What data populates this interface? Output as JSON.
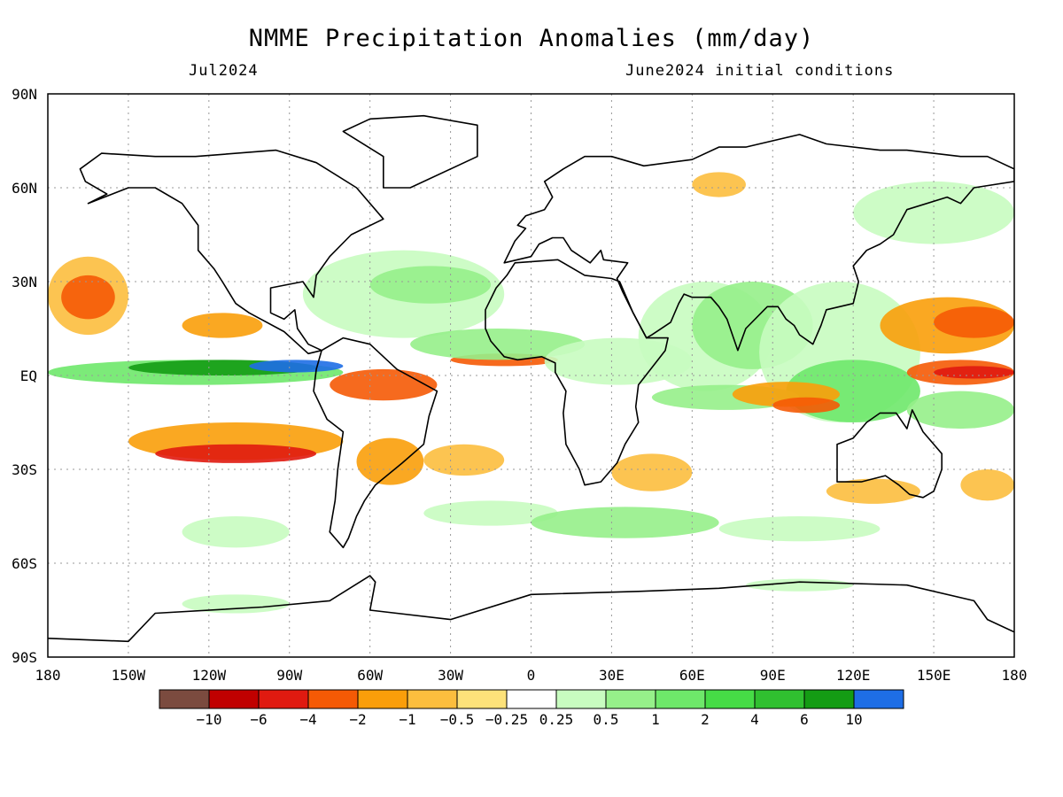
{
  "header": {
    "title": "NMME Precipitation Anomalies (mm/day)",
    "valid_period": "Jul2024",
    "initial_conditions": "June2024 initial conditions"
  },
  "axes": {
    "lat_ticks": [
      {
        "value": 90,
        "label": "90N"
      },
      {
        "value": 60,
        "label": "60N"
      },
      {
        "value": 30,
        "label": "30N"
      },
      {
        "value": 0,
        "label": "EQ"
      },
      {
        "value": -30,
        "label": "30S"
      },
      {
        "value": -60,
        "label": "60S"
      },
      {
        "value": -90,
        "label": "90S"
      }
    ],
    "lon_ticks": [
      {
        "value": -180,
        "label": "180"
      },
      {
        "value": -150,
        "label": "150W"
      },
      {
        "value": -120,
        "label": "120W"
      },
      {
        "value": -90,
        "label": "90W"
      },
      {
        "value": -60,
        "label": "60W"
      },
      {
        "value": -30,
        "label": "30W"
      },
      {
        "value": 0,
        "label": "0"
      },
      {
        "value": 30,
        "label": "30E"
      },
      {
        "value": 60,
        "label": "60E"
      },
      {
        "value": 90,
        "label": "90E"
      },
      {
        "value": 120,
        "label": "120E"
      },
      {
        "value": 150,
        "label": "150E"
      },
      {
        "value": 180,
        "label": "180"
      }
    ],
    "lat_range": [
      -90,
      90
    ],
    "lon_range": [
      -180,
      180
    ],
    "grid": "dotted"
  },
  "colorbar": {
    "colors": [
      "#7b4b3f",
      "#c00000",
      "#e01a10",
      "#f55a05",
      "#fa9e0a",
      "#fcbe3e",
      "#fde27a",
      "#ffffff",
      "#c8fcc0",
      "#96f08a",
      "#6ee86a",
      "#46dc46",
      "#30c030",
      "#149c14",
      "#1e6ee6"
    ],
    "labels": [
      "−10",
      "−6",
      "−4",
      "−2",
      "−1",
      "−0.5",
      "−0.25",
      "0.25",
      "0.5",
      "1",
      "2",
      "4",
      "6",
      "10"
    ]
  },
  "map_regions": [
    {
      "lon": -180,
      "lat": 5,
      "w": 110,
      "h": 8,
      "level": 10
    },
    {
      "lon": -150,
      "lat": 5,
      "w": 70,
      "h": 5,
      "level": 13
    },
    {
      "lon": -105,
      "lat": 5,
      "w": 35,
      "h": 4,
      "level": 14
    },
    {
      "lon": -180,
      "lat": 14,
      "w": 110,
      "h": 6,
      "level": 7
    },
    {
      "lon": -180,
      "lat": -7,
      "w": 60,
      "h": 10,
      "level": 7
    },
    {
      "lon": -180,
      "lat": 38,
      "w": 30,
      "h": 25,
      "level": 5
    },
    {
      "lon": -175,
      "lat": 32,
      "w": 20,
      "h": 14,
      "level": 3
    },
    {
      "lon": -130,
      "lat": 20,
      "w": 30,
      "h": 8,
      "level": 4
    },
    {
      "lon": -150,
      "lat": -15,
      "w": 80,
      "h": 12,
      "level": 4
    },
    {
      "lon": -140,
      "lat": -22,
      "w": 60,
      "h": 6,
      "level": 2
    },
    {
      "lon": -75,
      "lat": 2,
      "w": 40,
      "h": 10,
      "level": 3
    },
    {
      "lon": -65,
      "lat": -20,
      "w": 25,
      "h": 15,
      "level": 4
    },
    {
      "lon": -40,
      "lat": -22,
      "w": 30,
      "h": 10,
      "level": 5
    },
    {
      "lon": -30,
      "lat": 7,
      "w": 40,
      "h": 4,
      "level": 3
    },
    {
      "lon": -85,
      "lat": 40,
      "w": 75,
      "h": 28,
      "level": 8
    },
    {
      "lon": -60,
      "lat": 35,
      "w": 45,
      "h": 12,
      "level": 9
    },
    {
      "lon": -45,
      "lat": 15,
      "w": 65,
      "h": 10,
      "level": 9
    },
    {
      "lon": 5,
      "lat": 12,
      "w": 55,
      "h": 15,
      "level": 8
    },
    {
      "lon": 40,
      "lat": 30,
      "w": 50,
      "h": 35,
      "level": 8
    },
    {
      "lon": 60,
      "lat": 30,
      "w": 45,
      "h": 28,
      "level": 9
    },
    {
      "lon": 85,
      "lat": 30,
      "w": 60,
      "h": 45,
      "level": 8
    },
    {
      "lon": 95,
      "lat": 5,
      "w": 50,
      "h": 20,
      "level": 10
    },
    {
      "lon": 45,
      "lat": -3,
      "w": 55,
      "h": 8,
      "level": 9
    },
    {
      "lon": 75,
      "lat": -2,
      "w": 40,
      "h": 8,
      "level": 4
    },
    {
      "lon": 90,
      "lat": -7,
      "w": 25,
      "h": 5,
      "level": 3
    },
    {
      "lon": 130,
      "lat": 25,
      "w": 50,
      "h": 18,
      "level": 4
    },
    {
      "lon": 150,
      "lat": 22,
      "w": 30,
      "h": 10,
      "level": 3
    },
    {
      "lon": 140,
      "lat": 5,
      "w": 40,
      "h": 8,
      "level": 3
    },
    {
      "lon": 150,
      "lat": 3,
      "w": 30,
      "h": 4,
      "level": 2
    },
    {
      "lon": 140,
      "lat": -5,
      "w": 40,
      "h": 12,
      "level": 9
    },
    {
      "lon": 30,
      "lat": -25,
      "w": 30,
      "h": 12,
      "level": 5
    },
    {
      "lon": 110,
      "lat": -33,
      "w": 35,
      "h": 8,
      "level": 5
    },
    {
      "lon": 160,
      "lat": -30,
      "w": 20,
      "h": 10,
      "level": 5
    },
    {
      "lon": -40,
      "lat": -40,
      "w": 50,
      "h": 8,
      "level": 8
    },
    {
      "lon": 0,
      "lat": -42,
      "w": 70,
      "h": 10,
      "level": 9
    },
    {
      "lon": 70,
      "lat": -45,
      "w": 60,
      "h": 8,
      "level": 8
    },
    {
      "lon": -130,
      "lat": -45,
      "w": 40,
      "h": 10,
      "level": 8
    },
    {
      "lon": -130,
      "lat": -70,
      "w": 40,
      "h": 6,
      "level": 8
    },
    {
      "lon": 80,
      "lat": -65,
      "w": 40,
      "h": 4,
      "level": 8
    },
    {
      "lon": 60,
      "lat": 65,
      "w": 20,
      "h": 8,
      "level": 5
    },
    {
      "lon": 120,
      "lat": 62,
      "w": 60,
      "h": 20,
      "level": 8
    }
  ],
  "land_outlines": [
    [
      [
        -168,
        66
      ],
      [
        -160,
        71
      ],
      [
        -140,
        70
      ],
      [
        -125,
        70
      ],
      [
        -95,
        72
      ],
      [
        -80,
        68
      ],
      [
        -65,
        60
      ],
      [
        -55,
        50
      ],
      [
        -67,
        45
      ],
      [
        -75,
        38
      ],
      [
        -80,
        32
      ],
      [
        -81,
        25
      ],
      [
        -85,
        30
      ],
      [
        -97,
        28
      ],
      [
        -97,
        20
      ],
      [
        -92,
        18
      ],
      [
        -88,
        21
      ],
      [
        -87,
        15
      ],
      [
        -83,
        10
      ],
      [
        -78,
        8
      ],
      [
        -83,
        7
      ],
      [
        -92,
        14
      ],
      [
        -105,
        20
      ],
      [
        -110,
        23
      ],
      [
        -115,
        30
      ],
      [
        -118,
        34
      ],
      [
        -124,
        40
      ],
      [
        -124,
        48
      ],
      [
        -130,
        55
      ],
      [
        -140,
        60
      ],
      [
        -150,
        60
      ],
      [
        -165,
        55
      ],
      [
        -158,
        58
      ],
      [
        -166,
        62
      ],
      [
        -168,
        66
      ]
    ],
    [
      [
        -78,
        8
      ],
      [
        -70,
        12
      ],
      [
        -60,
        10
      ],
      [
        -50,
        2
      ],
      [
        -35,
        -5
      ],
      [
        -38,
        -13
      ],
      [
        -40,
        -22
      ],
      [
        -48,
        -28
      ],
      [
        -58,
        -35
      ],
      [
        -62,
        -40
      ],
      [
        -65,
        -45
      ],
      [
        -68,
        -52
      ],
      [
        -70,
        -55
      ],
      [
        -75,
        -50
      ],
      [
        -73,
        -40
      ],
      [
        -72,
        -30
      ],
      [
        -70,
        -18
      ],
      [
        -76,
        -14
      ],
      [
        -81,
        -5
      ],
      [
        -80,
        2
      ],
      [
        -78,
        8
      ]
    ],
    [
      [
        -55,
        60
      ],
      [
        -45,
        60
      ],
      [
        -20,
        70
      ],
      [
        -20,
        80
      ],
      [
        -40,
        83
      ],
      [
        -60,
        82
      ],
      [
        -70,
        78
      ],
      [
        -55,
        70
      ],
      [
        -55,
        60
      ]
    ],
    [
      [
        -10,
        36
      ],
      [
        -6,
        43
      ],
      [
        -2,
        47
      ],
      [
        -5,
        48
      ],
      [
        -2,
        51
      ],
      [
        5,
        53
      ],
      [
        8,
        57
      ],
      [
        5,
        62
      ],
      [
        12,
        66
      ],
      [
        20,
        70
      ],
      [
        30,
        70
      ],
      [
        42,
        67
      ],
      [
        60,
        69
      ],
      [
        70,
        73
      ],
      [
        80,
        73
      ],
      [
        100,
        77
      ],
      [
        110,
        74
      ],
      [
        130,
        72
      ],
      [
        140,
        72
      ],
      [
        160,
        70
      ],
      [
        170,
        70
      ],
      [
        180,
        66
      ],
      [
        180,
        62
      ],
      [
        165,
        60
      ],
      [
        160,
        55
      ],
      [
        155,
        57
      ],
      [
        140,
        53
      ],
      [
        135,
        45
      ],
      [
        130,
        42
      ],
      [
        125,
        40
      ],
      [
        120,
        35
      ],
      [
        122,
        30
      ],
      [
        120,
        23
      ],
      [
        110,
        21
      ],
      [
        108,
        16
      ],
      [
        105,
        10
      ],
      [
        100,
        13
      ],
      [
        98,
        16
      ],
      [
        95,
        18
      ],
      [
        92,
        22
      ],
      [
        88,
        22
      ],
      [
        80,
        15
      ],
      [
        77,
        8
      ],
      [
        73,
        18
      ],
      [
        70,
        22
      ],
      [
        67,
        25
      ],
      [
        60,
        25
      ],
      [
        57,
        26
      ],
      [
        55,
        23
      ],
      [
        52,
        17
      ],
      [
        45,
        13
      ],
      [
        43,
        12
      ],
      [
        38,
        20
      ],
      [
        34,
        27
      ],
      [
        32,
        31
      ],
      [
        36,
        36
      ],
      [
        27,
        37
      ],
      [
        26,
        40
      ],
      [
        22,
        36
      ],
      [
        15,
        40
      ],
      [
        12,
        44
      ],
      [
        8,
        44
      ],
      [
        3,
        42
      ],
      [
        0,
        38
      ],
      [
        -10,
        36
      ]
    ],
    [
      [
        -17,
        15
      ],
      [
        -17,
        21
      ],
      [
        -13,
        28
      ],
      [
        -9,
        32
      ],
      [
        -6,
        36
      ],
      [
        10,
        37
      ],
      [
        20,
        32
      ],
      [
        30,
        31
      ],
      [
        33,
        30
      ],
      [
        38,
        20
      ],
      [
        43,
        12
      ],
      [
        51,
        12
      ],
      [
        50,
        8
      ],
      [
        40,
        -3
      ],
      [
        39,
        -10
      ],
      [
        40,
        -15
      ],
      [
        35,
        -22
      ],
      [
        32,
        -28
      ],
      [
        26,
        -34
      ],
      [
        20,
        -35
      ],
      [
        18,
        -30
      ],
      [
        13,
        -22
      ],
      [
        12,
        -12
      ],
      [
        13,
        -5
      ],
      [
        9,
        1
      ],
      [
        9,
        4
      ],
      [
        4,
        6
      ],
      [
        -5,
        5
      ],
      [
        -10,
        6
      ],
      [
        -15,
        11
      ],
      [
        -17,
        15
      ]
    ],
    [
      [
        114,
        -22
      ],
      [
        114,
        -34
      ],
      [
        123,
        -34
      ],
      [
        132,
        -32
      ],
      [
        137,
        -35
      ],
      [
        141,
        -38
      ],
      [
        146,
        -39
      ],
      [
        150,
        -37
      ],
      [
        153,
        -30
      ],
      [
        153,
        -25
      ],
      [
        146,
        -18
      ],
      [
        142,
        -11
      ],
      [
        140,
        -17
      ],
      [
        136,
        -12
      ],
      [
        130,
        -12
      ],
      [
        125,
        -15
      ],
      [
        120,
        -20
      ],
      [
        114,
        -22
      ]
    ],
    [
      [
        -180,
        -84
      ],
      [
        -150,
        -85
      ],
      [
        -140,
        -76
      ],
      [
        -100,
        -74
      ],
      [
        -75,
        -72
      ],
      [
        -60,
        -64
      ],
      [
        -58,
        -66
      ],
      [
        -60,
        -75
      ],
      [
        -30,
        -78
      ],
      [
        0,
        -70
      ],
      [
        40,
        -69
      ],
      [
        70,
        -68
      ],
      [
        100,
        -66
      ],
      [
        140,
        -67
      ],
      [
        165,
        -72
      ],
      [
        170,
        -78
      ],
      [
        180,
        -82
      ]
    ]
  ]
}
